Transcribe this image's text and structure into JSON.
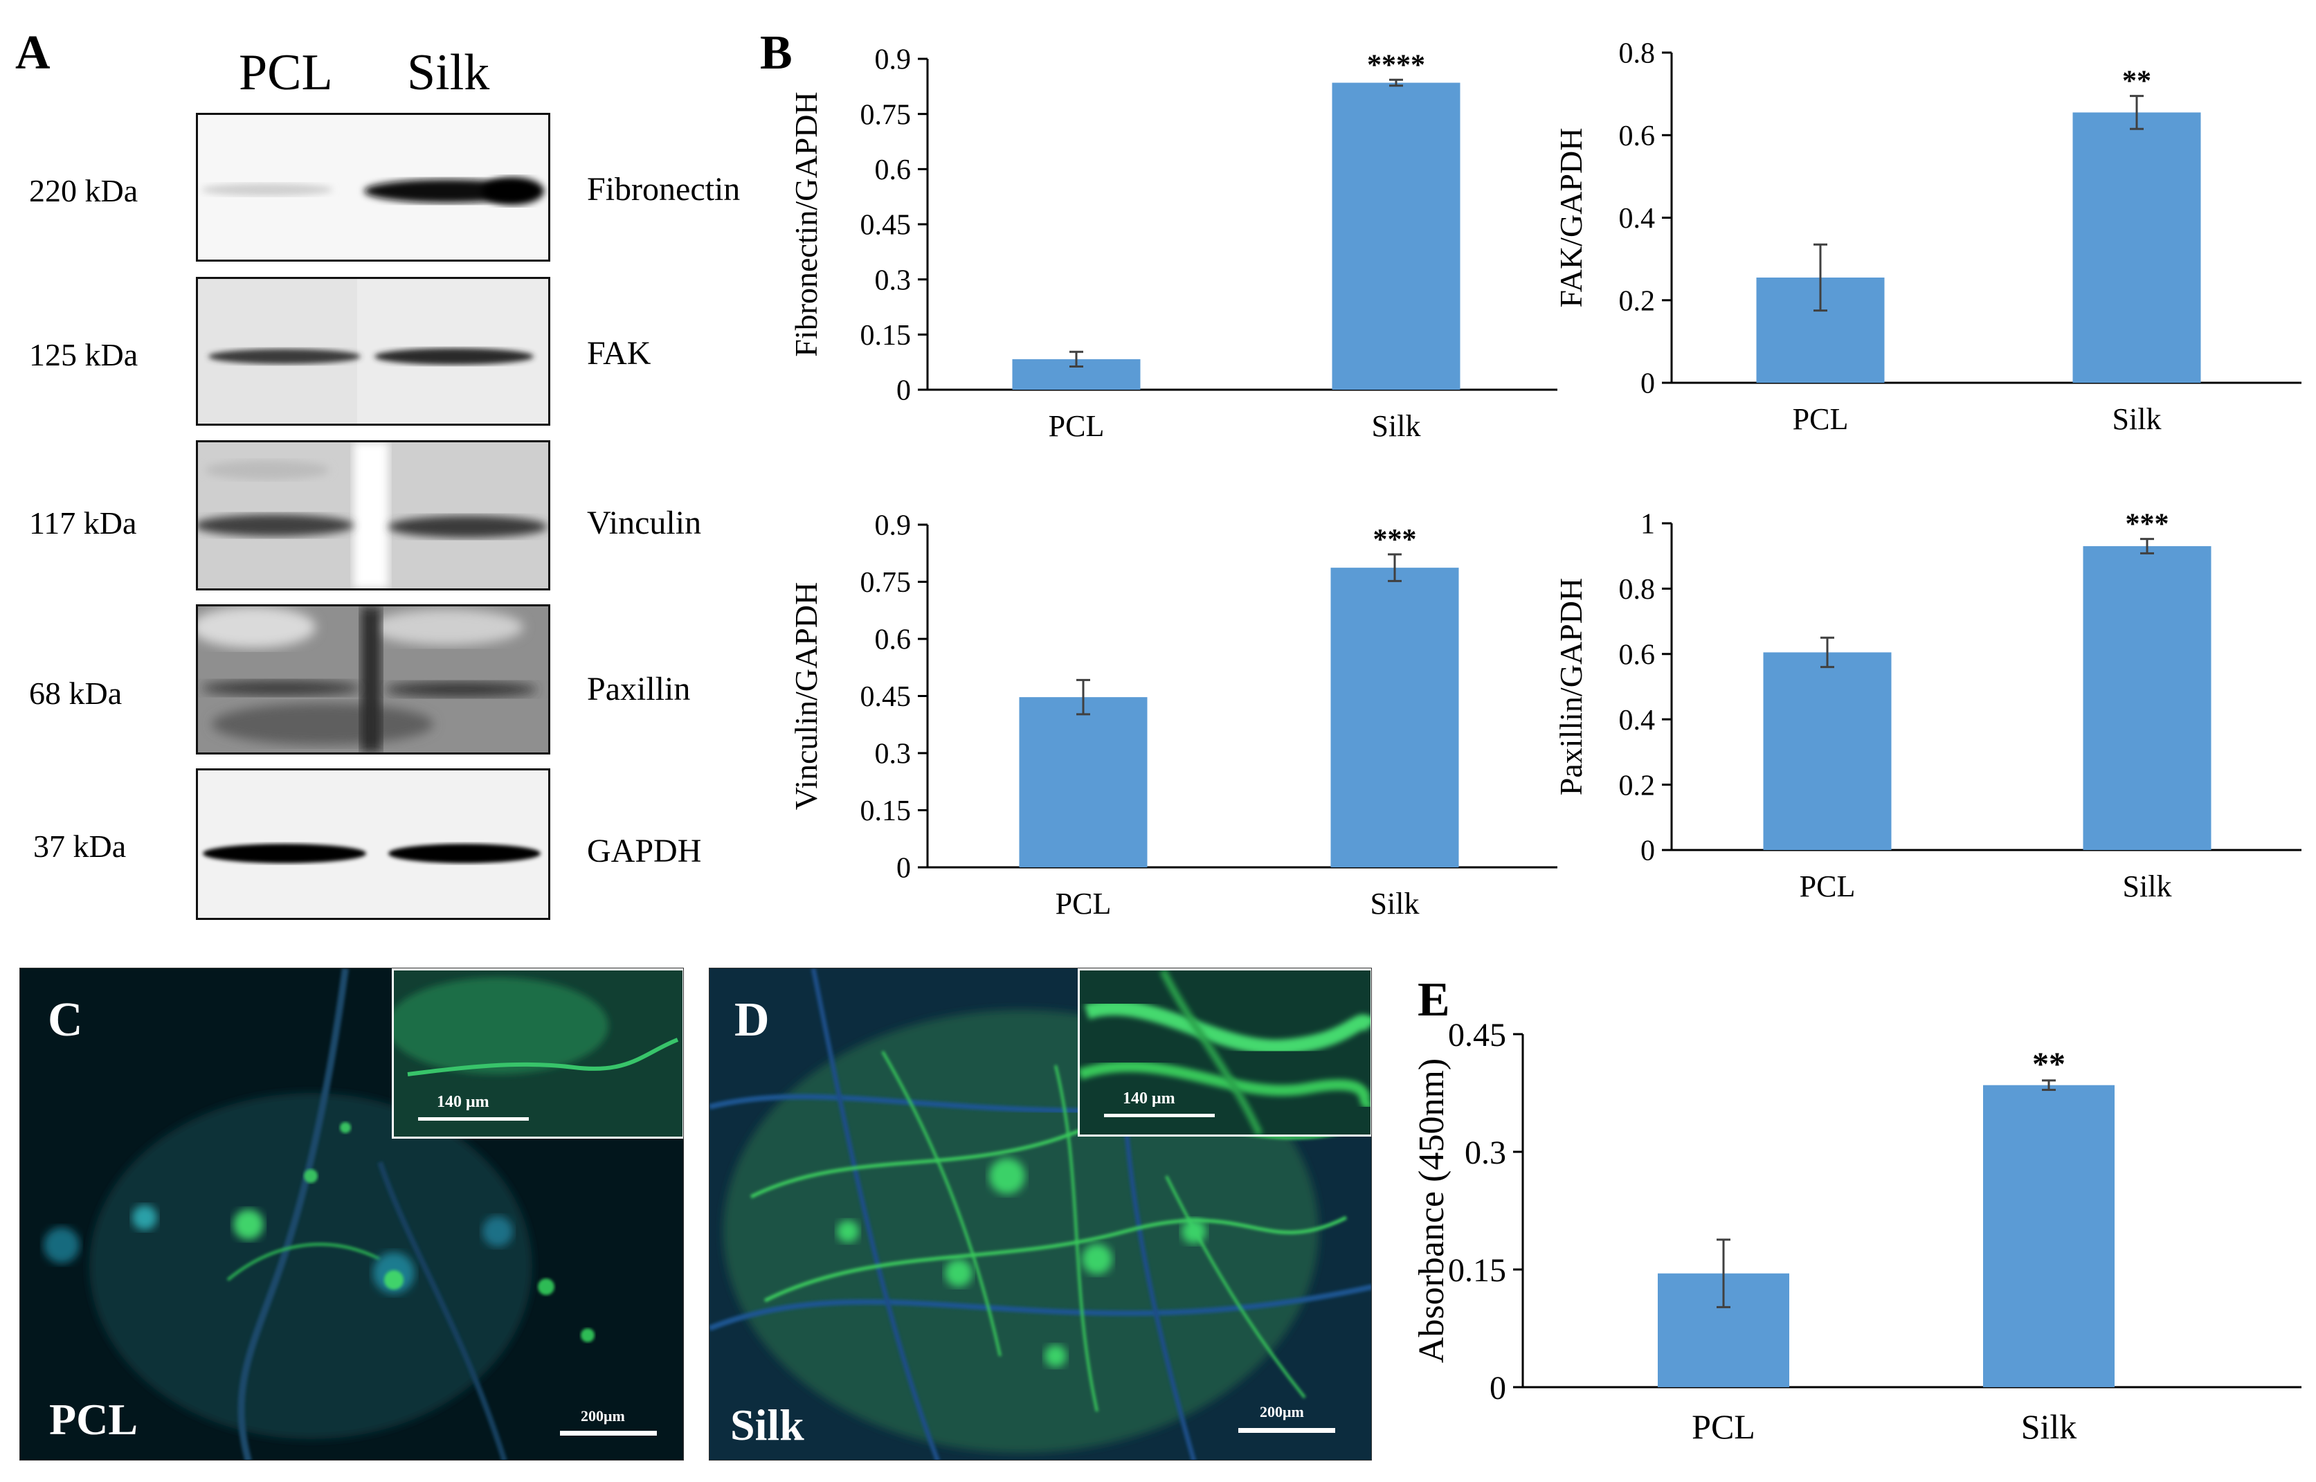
{
  "panels": {
    "a": "A",
    "b": "B",
    "c": "C",
    "d": "D",
    "e": "E"
  },
  "western_blot": {
    "lanes": [
      "PCL",
      "Silk"
    ],
    "rows": [
      {
        "kda": "220 kDa",
        "protein": "Fibronectin"
      },
      {
        "kda": "125 kDa",
        "protein": "FAK"
      },
      {
        "kda": "117 kDa",
        "protein": "Vinculin"
      },
      {
        "kda": "68 kDa",
        "protein": "Paxillin"
      },
      {
        "kda": "37 kDa",
        "protein": "GAPDH"
      }
    ]
  },
  "microscopy": {
    "c": {
      "label": "PCL",
      "inset_scale": "140 μm",
      "scale": "200μm"
    },
    "d": {
      "label": "Silk",
      "inset_scale": "140 μm",
      "scale": "200μm"
    }
  },
  "colors": {
    "bar": "#5b9bd5",
    "error": "#404040",
    "axis": "#000000"
  },
  "chart_data": [
    {
      "type": "bar",
      "panel": "B",
      "categories": [
        "PCL",
        "Silk"
      ],
      "values": [
        0.083,
        0.835
      ],
      "errors": [
        0.02,
        0.008
      ],
      "significance": [
        "",
        "****"
      ],
      "ylabel": "Fibronectin/GAPDH",
      "ylim": [
        0,
        0.9
      ],
      "yticks": [
        0,
        0.15,
        0.3,
        0.45,
        0.6,
        0.75,
        0.9
      ],
      "ytick_labels": [
        "0",
        "0.15",
        "0.3",
        "0.45",
        "0.6",
        "0.75",
        "0.9"
      ]
    },
    {
      "type": "bar",
      "panel": "B",
      "categories": [
        "PCL",
        "Silk"
      ],
      "values": [
        0.255,
        0.655
      ],
      "errors": [
        0.08,
        0.04
      ],
      "significance": [
        "",
        "**"
      ],
      "ylabel": "FAK/GAPDH",
      "ylim": [
        0,
        0.8
      ],
      "yticks": [
        0,
        0.2,
        0.4,
        0.6,
        0.8
      ],
      "ytick_labels": [
        "0",
        "0.2",
        "0.4",
        "0.6",
        "0.8"
      ]
    },
    {
      "type": "bar",
      "panel": "B",
      "categories": [
        "PCL",
        "Silk"
      ],
      "values": [
        0.447,
        0.787
      ],
      "errors": [
        0.045,
        0.035
      ],
      "significance": [
        "",
        "***"
      ],
      "ylabel": "Vinculin/GAPDH",
      "ylim": [
        0,
        0.9
      ],
      "yticks": [
        0,
        0.15,
        0.3,
        0.45,
        0.6,
        0.75,
        0.9
      ],
      "ytick_labels": [
        "0",
        "0.15",
        "0.3",
        "0.45",
        "0.6",
        "0.75",
        "0.9"
      ]
    },
    {
      "type": "bar",
      "panel": "B",
      "categories": [
        "PCL",
        "Silk"
      ],
      "values": [
        0.605,
        0.93
      ],
      "errors": [
        0.045,
        0.022
      ],
      "significance": [
        "",
        "***"
      ],
      "ylabel": "Paxillin/GAPDH",
      "ylim": [
        0,
        1
      ],
      "yticks": [
        0,
        0.2,
        0.4,
        0.6,
        0.8,
        1
      ],
      "ytick_labels": [
        "0",
        "0.2",
        "0.4",
        "0.6",
        "0.8",
        "1"
      ]
    },
    {
      "type": "bar",
      "panel": "E",
      "categories": [
        "PCL",
        "Silk"
      ],
      "values": [
        0.145,
        0.385
      ],
      "errors": [
        0.043,
        0.006
      ],
      "significance": [
        "",
        "**"
      ],
      "ylabel": "Absorbance (450nm)",
      "ylim": [
        0,
        0.45
      ],
      "yticks": [
        0,
        0.15,
        0.3,
        0.45
      ],
      "ytick_labels": [
        "0",
        "0.15",
        "0.3",
        "0.45"
      ]
    }
  ]
}
